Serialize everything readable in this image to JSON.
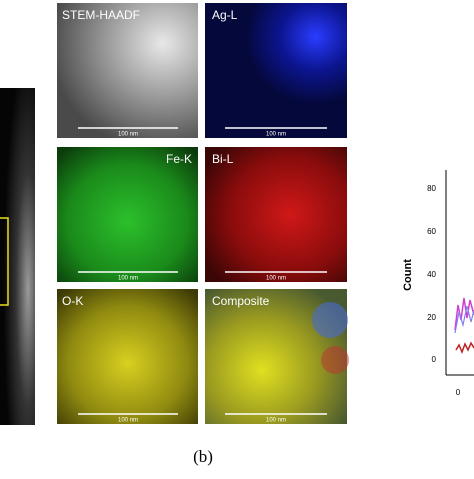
{
  "figure": {
    "panels": [
      {
        "label": "STEM-HAADF",
        "scale_bar": "100 nm"
      },
      {
        "label": "Ag-L",
        "scale_bar": "100 nm"
      },
      {
        "label": "Fe-K",
        "scale_bar": "100 nm"
      },
      {
        "label": "Bi-L",
        "scale_bar": "100 nm"
      },
      {
        "label": "O-K",
        "scale_bar": "100 nm"
      },
      {
        "label": "Composite",
        "scale_bar": "100 nm"
      }
    ],
    "plot": {
      "ylabel": "Count",
      "yticks": [
        "80",
        "60",
        "40",
        "20",
        "0"
      ],
      "xticks": [
        "0"
      ]
    },
    "caption": "(b)"
  }
}
